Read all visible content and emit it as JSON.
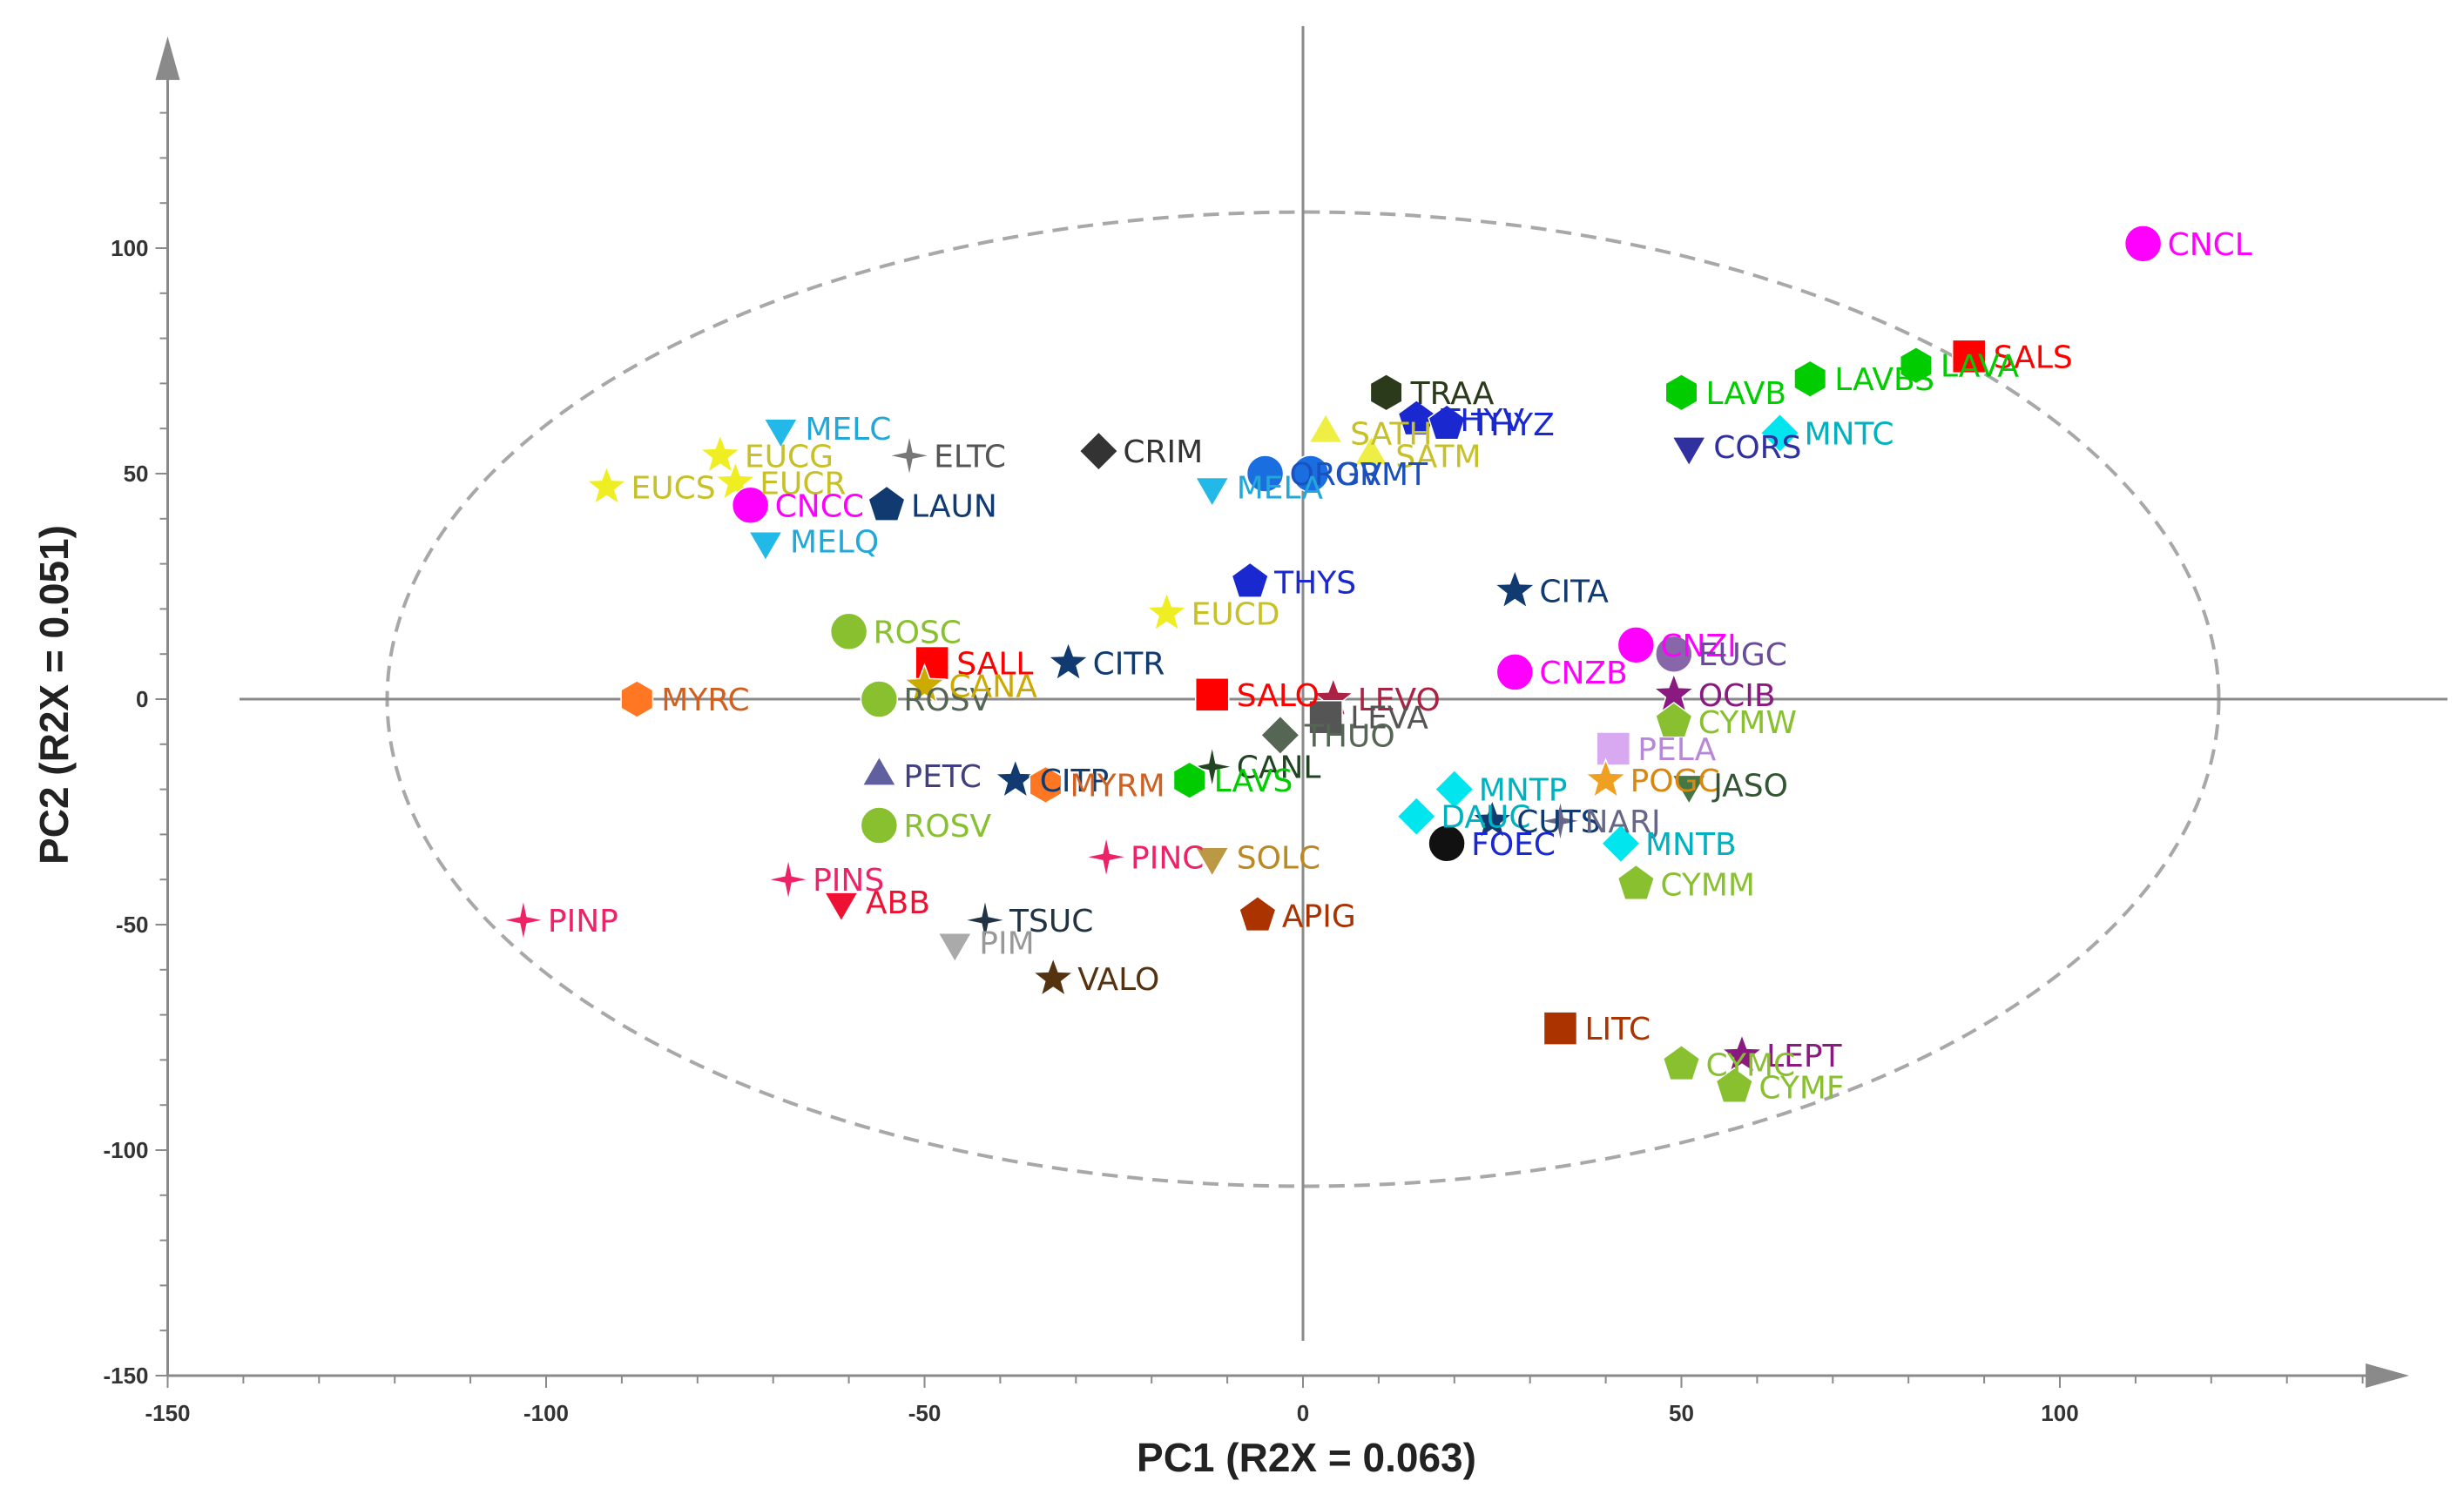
{
  "chart_data": {
    "type": "scatter",
    "title": "",
    "xlabel": "PC1 (R2X = 0.063)",
    "ylabel": "PC2 (R2X = 0.051)",
    "xlim": [
      -150,
      145
    ],
    "ylim": [
      -150,
      145
    ],
    "xticks": [
      -150,
      -100,
      -50,
      0,
      50,
      100
    ],
    "yticks": [
      -150,
      -100,
      -50,
      0,
      50,
      100
    ],
    "ellipse": {
      "center": [
        0,
        0
      ],
      "rx": 121,
      "ry": 108
    },
    "points": [
      {
        "label": "CNCL",
        "x": 111,
        "y": 101,
        "shape": "circle",
        "color": "#ff00ff",
        "labelColor": "#ff00ff"
      },
      {
        "label": "SALS",
        "x": 88,
        "y": 76,
        "shape": "square",
        "color": "#ff0000",
        "labelColor": "#ff0000"
      },
      {
        "label": "LAVA",
        "x": 81,
        "y": 74,
        "shape": "hexagon",
        "color": "#00cc00",
        "labelColor": "#00cc00"
      },
      {
        "label": "LAVBS",
        "x": 67,
        "y": 71,
        "shape": "hexagon",
        "color": "#00cc00",
        "labelColor": "#00cc00"
      },
      {
        "label": "LAVB",
        "x": 50,
        "y": 68,
        "shape": "hexagon",
        "color": "#00cc00",
        "labelColor": "#00cc00"
      },
      {
        "label": "MNTC",
        "x": 63,
        "y": 59,
        "shape": "diamond",
        "color": "#00e5ee",
        "labelColor": "#00b2bf"
      },
      {
        "label": "CORS",
        "x": 51,
        "y": 56,
        "shape": "triangle-down",
        "color": "#3030a0",
        "labelColor": "#3030a0"
      },
      {
        "label": "TRAA",
        "x": 11,
        "y": 68,
        "shape": "hexagon",
        "color": "#2a3a1a",
        "labelColor": "#2a3a1a"
      },
      {
        "label": "THYV",
        "x": 15,
        "y": 62,
        "shape": "pentagon",
        "color": "#1a28d0",
        "labelColor": "#1a28d0"
      },
      {
        "label": "THYZ",
        "x": 19,
        "y": 61,
        "shape": "pentagon",
        "color": "#1a28d0",
        "labelColor": "#1a28d0"
      },
      {
        "label": "SATH",
        "x": 3,
        "y": 59,
        "shape": "triangle",
        "color": "#eeee44",
        "labelColor": "#c8c028"
      },
      {
        "label": "SATM",
        "x": 9,
        "y": 54,
        "shape": "triangle",
        "color": "#eeee44",
        "labelColor": "#c8c028"
      },
      {
        "label": "ORGV",
        "x": -5,
        "y": 50,
        "shape": "circle",
        "color": "#1a6ee0",
        "labelColor": "#1a50c0"
      },
      {
        "label": "ORMT",
        "x": 1,
        "y": 50,
        "shape": "circle",
        "color": "#1a6ee0",
        "labelColor": "#1a50c0"
      },
      {
        "label": "MELA",
        "x": -12,
        "y": 47,
        "shape": "triangle-down",
        "color": "#22b8e8",
        "labelColor": "#22a8d8"
      },
      {
        "label": "CRIM",
        "x": -27,
        "y": 55,
        "shape": "diamond",
        "color": "#333333",
        "labelColor": "#333333"
      },
      {
        "label": "ELTC",
        "x": -52,
        "y": 54,
        "shape": "star4",
        "color": "#777777",
        "labelColor": "#555555"
      },
      {
        "label": "LAUN",
        "x": -55,
        "y": 43,
        "shape": "pentagon",
        "color": "#103a70",
        "labelColor": "#103a70"
      },
      {
        "label": "MELC",
        "x": -69,
        "y": 60,
        "shape": "triangle-down",
        "color": "#22b8e8",
        "labelColor": "#22a8d8"
      },
      {
        "label": "EUCG",
        "x": -77,
        "y": 54,
        "shape": "star",
        "color": "#eeee22",
        "labelColor": "#c8c028"
      },
      {
        "label": "EUCR",
        "x": -75,
        "y": 48,
        "shape": "star",
        "color": "#eeee22",
        "labelColor": "#c8c028"
      },
      {
        "label": "EUCS",
        "x": -92,
        "y": 47,
        "shape": "star",
        "color": "#eeee22",
        "labelColor": "#c8c028"
      },
      {
        "label": "CNCC",
        "x": -73,
        "y": 43,
        "shape": "circle",
        "color": "#ff00ff",
        "labelColor": "#ff00ff"
      },
      {
        "label": "MELQ",
        "x": -71,
        "y": 35,
        "shape": "triangle-down",
        "color": "#22b8e8",
        "labelColor": "#22a8d8"
      },
      {
        "label": "THYS",
        "x": -7,
        "y": 26,
        "shape": "pentagon",
        "color": "#1a28d0",
        "labelColor": "#1a28d0"
      },
      {
        "label": "EUCD",
        "x": -18,
        "y": 19,
        "shape": "star",
        "color": "#eeee22",
        "labelColor": "#c8c028"
      },
      {
        "label": "CITA",
        "x": 28,
        "y": 24,
        "shape": "star",
        "color": "#103a70",
        "labelColor": "#103a70"
      },
      {
        "label": "CNZI",
        "x": 44,
        "y": 12,
        "shape": "circle",
        "color": "#ff00ff",
        "labelColor": "#ff00ff"
      },
      {
        "label": "EUGC",
        "x": 49,
        "y": 10,
        "shape": "circle",
        "color": "#8866aa",
        "labelColor": "#6a4a9a"
      },
      {
        "label": "CNZB",
        "x": 28,
        "y": 6,
        "shape": "circle",
        "color": "#ff00ff",
        "labelColor": "#ff00ff"
      },
      {
        "label": "OCIB",
        "x": 49,
        "y": 1,
        "shape": "star",
        "color": "#8a1a80",
        "labelColor": "#8a1a80"
      },
      {
        "label": "CYMW",
        "x": 49,
        "y": -5,
        "shape": "pentagon",
        "color": "#88c030",
        "labelColor": "#88c030"
      },
      {
        "label": "ROSC",
        "x": -60,
        "y": 15,
        "shape": "circle",
        "color": "#88c030",
        "labelColor": "#88c030"
      },
      {
        "label": "SALL",
        "x": -49,
        "y": 8,
        "shape": "square",
        "color": "#ff0000",
        "labelColor": "#ff0000"
      },
      {
        "label": "CITR",
        "x": -31,
        "y": 8,
        "shape": "star",
        "color": "#103a70",
        "labelColor": "#103a70"
      },
      {
        "label": "SALO",
        "x": -12,
        "y": 1,
        "shape": "square",
        "color": "#ff0000",
        "labelColor": "#ff0000"
      },
      {
        "label": "LEVO",
        "x": 4,
        "y": 0,
        "shape": "star",
        "color": "#aa2244",
        "labelColor": "#aa2244"
      },
      {
        "label": "LEVA",
        "x": 3,
        "y": -4,
        "shape": "square",
        "color": "#555555",
        "labelColor": "#555555"
      },
      {
        "label": "THUO",
        "x": -3,
        "y": -8,
        "shape": "diamond",
        "color": "#556655",
        "labelColor": "#556655"
      },
      {
        "label": "MYRC",
        "x": -88,
        "y": 0,
        "shape": "hexagon",
        "color": "#ff7722",
        "labelColor": "#d06020"
      },
      {
        "label": "ROSV",
        "x": -56,
        "y": 0,
        "shape": "circle",
        "color": "#88c030",
        "labelColor": "#556655"
      },
      {
        "label": "CANA",
        "x": -50,
        "y": 3,
        "shape": "star",
        "color": "#ccaa00",
        "labelColor": "#ccaa00"
      },
      {
        "label": "CANL",
        "x": -12,
        "y": -15,
        "shape": "star4",
        "color": "#224422",
        "labelColor": "#224422"
      },
      {
        "label": "LAVS",
        "x": -15,
        "y": -18,
        "shape": "hexagon",
        "color": "#00cc00",
        "labelColor": "#00cc00"
      },
      {
        "label": "PETC",
        "x": -56,
        "y": -17,
        "shape": "triangle",
        "color": "#6060a0",
        "labelColor": "#404080"
      },
      {
        "label": "CITP",
        "x": -38,
        "y": -18,
        "shape": "star",
        "color": "#103a70",
        "labelColor": "#103a70"
      },
      {
        "label": "MYRM",
        "x": -34,
        "y": -19,
        "shape": "hexagon",
        "color": "#ff7722",
        "labelColor": "#d06020"
      },
      {
        "label": "ROSV",
        "x": -56,
        "y": -28,
        "shape": "circle",
        "color": "#88c030",
        "labelColor": "#88c030"
      },
      {
        "label": "PINC",
        "x": -26,
        "y": -35,
        "shape": "star4",
        "color": "#ee2266",
        "labelColor": "#ee2266"
      },
      {
        "label": "SOLC",
        "x": -12,
        "y": -35,
        "shape": "triangle-down",
        "color": "#bb9944",
        "labelColor": "#bb8822"
      },
      {
        "label": "PINS",
        "x": -68,
        "y": -40,
        "shape": "star4",
        "color": "#ee2266",
        "labelColor": "#ee2266"
      },
      {
        "label": "ABB",
        "x": -61,
        "y": -45,
        "shape": "triangle-down",
        "color": "#ee1133",
        "labelColor": "#ee1133"
      },
      {
        "label": "PINP",
        "x": -103,
        "y": -49,
        "shape": "star4",
        "color": "#ee2266",
        "labelColor": "#ee2266"
      },
      {
        "label": "TSUC",
        "x": -42,
        "y": -49,
        "shape": "star4",
        "color": "#223344",
        "labelColor": "#223344"
      },
      {
        "label": "APIG",
        "x": -6,
        "y": -48,
        "shape": "pentagon",
        "color": "#aa3300",
        "labelColor": "#aa3300"
      },
      {
        "label": "PIM",
        "x": -46,
        "y": -54,
        "shape": "triangle-down",
        "color": "#aaaaaa",
        "labelColor": "#999999"
      },
      {
        "label": "VALO",
        "x": -33,
        "y": -62,
        "shape": "star",
        "color": "#553311",
        "labelColor": "#553311"
      },
      {
        "label": "PELA",
        "x": 41,
        "y": -11,
        "shape": "square",
        "color": "#d8a8f0",
        "labelColor": "#b888d8"
      },
      {
        "label": "POGC",
        "x": 40,
        "y": -18,
        "shape": "star",
        "color": "#f0a020",
        "labelColor": "#d88810"
      },
      {
        "label": "JASO",
        "x": 51,
        "y": -19,
        "shape": "triangle-down",
        "color": "#447744",
        "labelColor": "#335533"
      },
      {
        "label": "MNTP",
        "x": 20,
        "y": -20,
        "shape": "diamond",
        "color": "#00e5ee",
        "labelColor": "#00b2bf"
      },
      {
        "label": "DAUC",
        "x": 15,
        "y": -26,
        "shape": "diamond",
        "color": "#00e5ee",
        "labelColor": "#00b2bf"
      },
      {
        "label": "CUTS",
        "x": 25,
        "y": -27,
        "shape": "star",
        "color": "#103a70",
        "labelColor": "#103a70"
      },
      {
        "label": "NARJ",
        "x": 34,
        "y": -27,
        "shape": "star4",
        "color": "#666688",
        "labelColor": "#666688"
      },
      {
        "label": "FOEC",
        "x": 19,
        "y": -32,
        "shape": "circle",
        "color": "#111111",
        "labelColor": "#1a28d0"
      },
      {
        "label": "MNTB",
        "x": 42,
        "y": -32,
        "shape": "diamond",
        "color": "#00e5ee",
        "labelColor": "#00b2bf"
      },
      {
        "label": "CYMM",
        "x": 44,
        "y": -41,
        "shape": "pentagon",
        "color": "#88c030",
        "labelColor": "#88c030"
      },
      {
        "label": "LITC",
        "x": 34,
        "y": -73,
        "shape": "square",
        "color": "#aa3300",
        "labelColor": "#aa3300"
      },
      {
        "label": "LEPT",
        "x": 58,
        "y": -79,
        "shape": "star",
        "color": "#8a1a80",
        "labelColor": "#8a1a80"
      },
      {
        "label": "CYMF",
        "x": 57,
        "y": -86,
        "shape": "pentagon",
        "color": "#88c030",
        "labelColor": "#88c030"
      },
      {
        "label": "CYMC",
        "x": 50,
        "y": -81,
        "shape": "pentagon",
        "color": "#88c030",
        "labelColor": "#88c030"
      }
    ]
  }
}
